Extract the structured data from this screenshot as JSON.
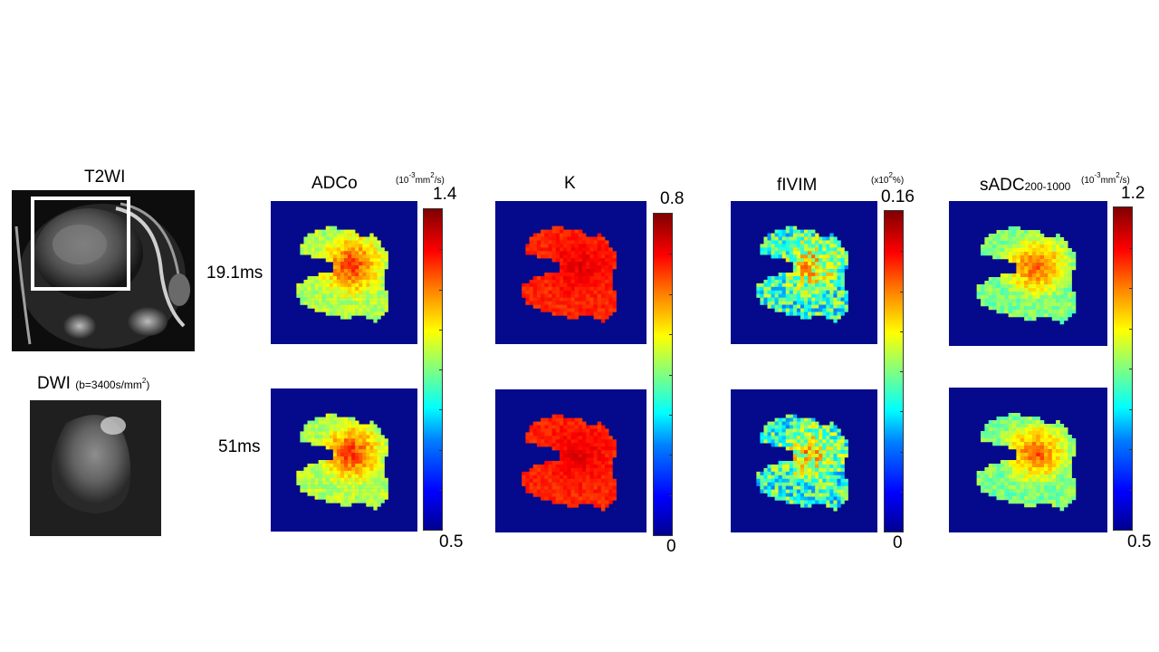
{
  "left": {
    "t2wi_label": "T2WI",
    "dwi_label": "DWI",
    "dwi_param_prefix": "(b=3400s/mm",
    "dwi_param_sup": "2",
    "dwi_param_suffix": ")"
  },
  "rows": {
    "row1_label": "19.1ms",
    "row2_label": "51ms"
  },
  "panels": [
    {
      "title": "ADCo",
      "title_sub": "",
      "unit_prefix": "(10",
      "unit_sup1": "-3",
      "unit_mid": "mm",
      "unit_sup2": "2",
      "unit_suffix": "/s)",
      "max": "1.4",
      "min": "0.5"
    },
    {
      "title": "K",
      "title_sub": "",
      "max": "0.8",
      "min": "0"
    },
    {
      "title": "fIVIM",
      "title_sub": "",
      "unit_prefix": "(x10",
      "unit_sup1": "2",
      "unit_mid": "%",
      "unit_suffix": ")",
      "max": "0.16",
      "min": "0"
    },
    {
      "title": "sADC",
      "title_sub": "200-1000",
      "unit_prefix": "(10",
      "unit_sup1": "-3",
      "unit_mid": "mm",
      "unit_sup2": "2",
      "unit_suffix": "/s)",
      "max": "1.2",
      "min": "0.5"
    }
  ],
  "colors": {
    "map_background": "#050a8c",
    "colormap": "jet"
  }
}
